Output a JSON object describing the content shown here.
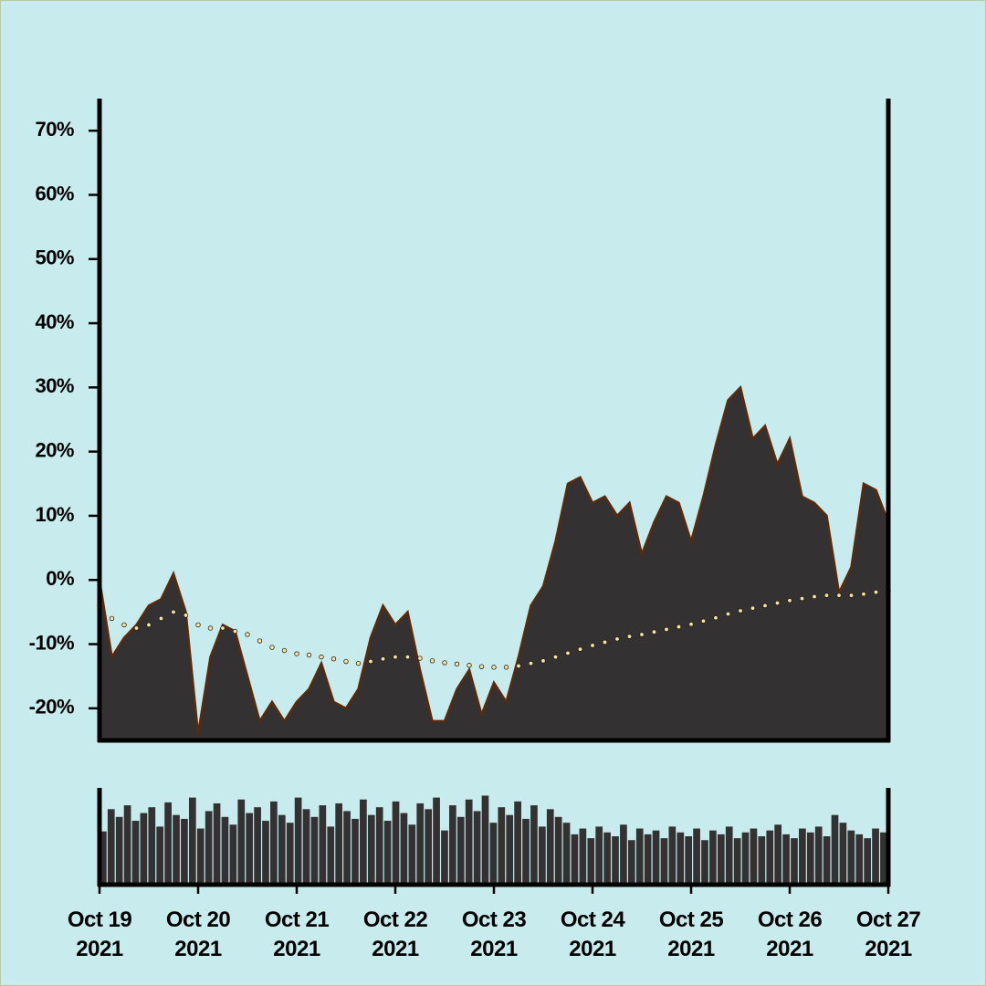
{
  "chart_data": [
    {
      "type": "area",
      "background": "#c8ecee",
      "xlim": [
        0,
        8
      ],
      "ylim": [
        -25,
        75
      ],
      "yticks": [
        {
          "value": -20,
          "label": "-20%"
        },
        {
          "value": -10,
          "label": "-10%"
        },
        {
          "value": 0,
          "label": "0%"
        },
        {
          "value": 10,
          "label": "10%"
        },
        {
          "value": 20,
          "label": "20%"
        },
        {
          "value": 30,
          "label": "30%"
        },
        {
          "value": 40,
          "label": "40%"
        },
        {
          "value": 50,
          "label": "50%"
        },
        {
          "value": 60,
          "label": "60%"
        },
        {
          "value": 70,
          "label": "70%"
        }
      ],
      "series": [
        {
          "type": "area",
          "color": "#333132",
          "edge_color": "#5a2a0a",
          "values": [
            0,
            -12,
            -9,
            -7,
            -4,
            -3,
            1,
            -5,
            -24,
            -12,
            -7,
            -8,
            -15,
            -22,
            -19,
            -22,
            -19,
            -17,
            -13,
            -19,
            -20,
            -17,
            -9,
            -4,
            -7,
            -5,
            -14,
            -22,
            -22,
            -17,
            -14,
            -21,
            -16,
            -19,
            -12,
            -4,
            -1,
            6,
            15,
            16,
            12,
            13,
            10,
            12,
            4,
            9,
            13,
            12,
            6,
            13,
            21,
            28,
            30,
            22,
            24,
            18,
            22,
            13,
            12,
            10,
            -2,
            2,
            15,
            14,
            9
          ]
        },
        {
          "type": "dots",
          "color": "#f5e6a8",
          "edge_color": "#2a2010",
          "values": [
            -4,
            -6,
            -7,
            -7.5,
            -7,
            -6,
            -5,
            -5.5,
            -7,
            -7.5,
            -7.5,
            -8,
            -8.5,
            -9.5,
            -10.5,
            -11,
            -11.5,
            -11.7,
            -12,
            -12.3,
            -12.7,
            -13,
            -12.7,
            -12.3,
            -12,
            -12,
            -12.2,
            -12.6,
            -12.9,
            -13.1,
            -13.3,
            -13.5,
            -13.6,
            -13.6,
            -13.4,
            -13,
            -12.6,
            -12,
            -11.4,
            -10.8,
            -10.2,
            -9.7,
            -9.2,
            -8.8,
            -8.5,
            -8.1,
            -7.7,
            -7.3,
            -6.9,
            -6.4,
            -5.9,
            -5.3,
            -4.8,
            -4.4,
            -4,
            -3.6,
            -3.2,
            -2.9,
            -2.6,
            -2.4,
            -2.4,
            -2.4,
            -2.2,
            -1.9,
            -1.7
          ]
        }
      ]
    },
    {
      "type": "bar",
      "color": "#333132",
      "xlim": [
        0,
        8
      ],
      "ylim": [
        0,
        100
      ],
      "xticks": [
        {
          "value": 0,
          "label": "Oct 19 2021"
        },
        {
          "value": 1,
          "label": "Oct 20 2021"
        },
        {
          "value": 2,
          "label": "Oct 21 2021"
        },
        {
          "value": 3,
          "label": "Oct 22 2021"
        },
        {
          "value": 4,
          "label": "Oct 23 2021"
        },
        {
          "value": 5,
          "label": "Oct 24 2021"
        },
        {
          "value": 6,
          "label": "Oct 25 2021"
        },
        {
          "value": 7,
          "label": "Oct 26 2021"
        },
        {
          "value": 8,
          "label": "Oct 27 2021"
        }
      ],
      "values": [
        55,
        78,
        70,
        82,
        66,
        74,
        80,
        60,
        85,
        72,
        68,
        90,
        58,
        76,
        84,
        70,
        62,
        88,
        74,
        80,
        66,
        86,
        72,
        64,
        90,
        78,
        70,
        82,
        60,
        84,
        76,
        68,
        88,
        72,
        80,
        66,
        86,
        74,
        62,
        84,
        78,
        90,
        56,
        82,
        70,
        88,
        76,
        92,
        64,
        80,
        72,
        86,
        68,
        82,
        60,
        78,
        70,
        64,
        52,
        58,
        48,
        60,
        54,
        50,
        62,
        46,
        58,
        52,
        56,
        48,
        60,
        54,
        50,
        58,
        46,
        56,
        52,
        60,
        48,
        54,
        58,
        50,
        56,
        62,
        52,
        48,
        58,
        54,
        60,
        50,
        72,
        64,
        56,
        52,
        48,
        58,
        54
      ]
    }
  ]
}
